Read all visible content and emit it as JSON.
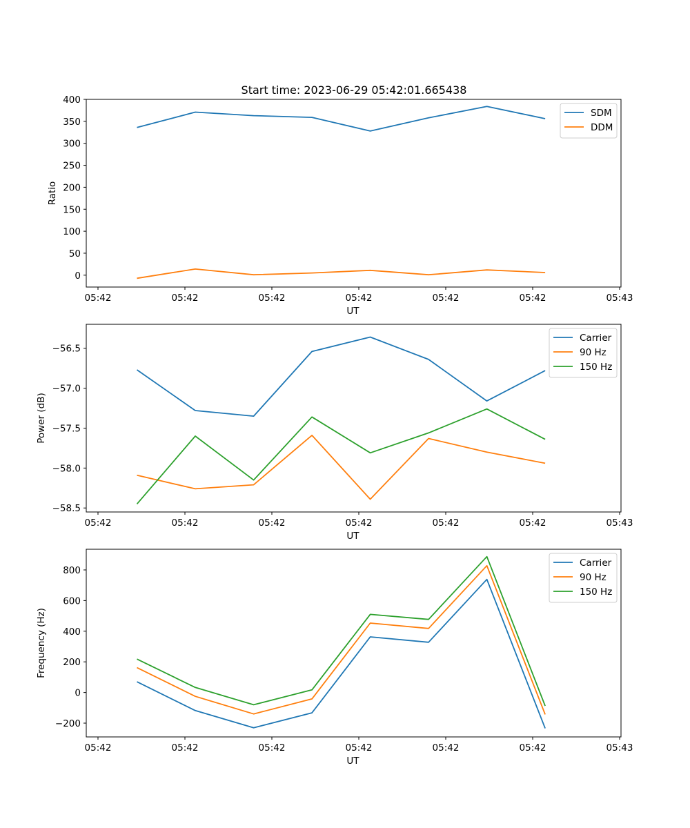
{
  "figure": {
    "title": "Start time: 2023-06-29 05:42:01.665438"
  },
  "chart_data": [
    {
      "type": "line",
      "title": "Start time: 2023-06-29 05:42:01.665438",
      "xlabel": "UT",
      "ylabel": "Ratio",
      "x_tick_labels": [
        "05:42",
        "05:42",
        "05:42",
        "05:42",
        "05:42",
        "05:42",
        "05:42"
      ],
      "x_last_tick_label": "05:43",
      "x": [
        1,
        2,
        3,
        4,
        5,
        6,
        7,
        8
      ],
      "xlim": [
        0.13,
        9.3
      ],
      "y_ticks": [
        0,
        50,
        100,
        150,
        200,
        250,
        300,
        350,
        400
      ],
      "ylim": [
        -27,
        400
      ],
      "legend_position": "top-right",
      "series": [
        {
          "name": "SDM",
          "color": "#1f77b4",
          "values": [
            336,
            371,
            363,
            359,
            328,
            358,
            384,
            356
          ]
        },
        {
          "name": "DDM",
          "color": "#ff7f0e",
          "values": [
            -7,
            14,
            1,
            5,
            11,
            1,
            12,
            6
          ]
        }
      ]
    },
    {
      "type": "line",
      "xlabel": "UT",
      "ylabel": "Power (dB)",
      "x_tick_labels": [
        "05:42",
        "05:42",
        "05:42",
        "05:42",
        "05:42",
        "05:42",
        "05:42"
      ],
      "x_last_tick_label": "05:43",
      "x": [
        1,
        2,
        3,
        4,
        5,
        6,
        7,
        8
      ],
      "xlim": [
        0.13,
        9.3
      ],
      "y_ticks": [
        -58.5,
        -58.0,
        -57.5,
        -57.0,
        -56.5
      ],
      "y_tick_labels": [
        "−58.5",
        "−58.0",
        "−57.5",
        "−57.0",
        "−56.5"
      ],
      "ylim": [
        -58.55,
        -56.2
      ],
      "legend_position": "top-right",
      "series": [
        {
          "name": "Carrier",
          "color": "#1f77b4",
          "values": [
            -56.77,
            -57.28,
            -57.35,
            -56.54,
            -56.36,
            -56.64,
            -57.16,
            -56.78
          ]
        },
        {
          "name": "90 Hz",
          "color": "#ff7f0e",
          "values": [
            -58.09,
            -58.26,
            -58.21,
            -57.59,
            -58.39,
            -57.63,
            -57.8,
            -57.94
          ]
        },
        {
          "name": "150 Hz",
          "color": "#2ca02c",
          "values": [
            -58.45,
            -57.6,
            -58.15,
            -57.36,
            -57.81,
            -57.56,
            -57.26,
            -57.64
          ]
        }
      ]
    },
    {
      "type": "line",
      "xlabel": "UT",
      "ylabel": "Frequency (Hz)",
      "x_tick_labels": [
        "05:42",
        "05:42",
        "05:42",
        "05:42",
        "05:42",
        "05:42",
        "05:42"
      ],
      "x_last_tick_label": "05:43",
      "x": [
        1,
        2,
        3,
        4,
        5,
        6,
        7,
        8
      ],
      "xlim": [
        0.13,
        9.3
      ],
      "y_ticks": [
        -200,
        0,
        200,
        400,
        600,
        800
      ],
      "y_tick_labels": [
        "−200",
        "0",
        "200",
        "400",
        "600",
        "800"
      ],
      "ylim": [
        -290,
        935
      ],
      "legend_position": "top-right",
      "series": [
        {
          "name": "Carrier",
          "color": "#1f77b4",
          "values": [
            70,
            -118,
            -230,
            -133,
            363,
            328,
            738,
            -234
          ]
        },
        {
          "name": "90 Hz",
          "color": "#ff7f0e",
          "values": [
            162,
            -25,
            -140,
            -42,
            453,
            418,
            828,
            -143
          ]
        },
        {
          "name": "150 Hz",
          "color": "#2ca02c",
          "values": [
            218,
            33,
            -80,
            17,
            510,
            477,
            887,
            -88
          ]
        }
      ]
    }
  ]
}
